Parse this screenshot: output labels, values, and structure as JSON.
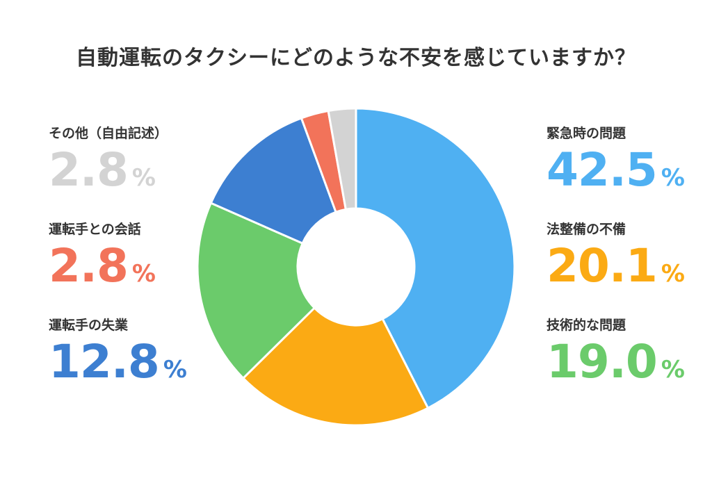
{
  "title": "自動運転のタクシーにどのような不安を感じていますか？",
  "chart_data": {
    "type": "pie",
    "donut": true,
    "unit": "%",
    "slices": [
      {
        "label": "緊急時の問題",
        "value": 42.5,
        "display": "42.5",
        "color": "#4FB0F2"
      },
      {
        "label": "法整備の不備",
        "value": 20.1,
        "display": "20.1",
        "color": "#FBAA14"
      },
      {
        "label": "技術的な問題",
        "value": 19.0,
        "display": "19.0",
        "color": "#6BCB6B"
      },
      {
        "label": "運転手の失業",
        "value": 12.8,
        "display": "12.8",
        "color": "#3D7FD1"
      },
      {
        "label": "運転手との会話",
        "value": 2.8,
        "display": "2.8",
        "color": "#F2735A"
      },
      {
        "label": "その他（自由記述）",
        "value": 2.8,
        "display": "2.8",
        "color": "#D3D3D3"
      }
    ]
  }
}
